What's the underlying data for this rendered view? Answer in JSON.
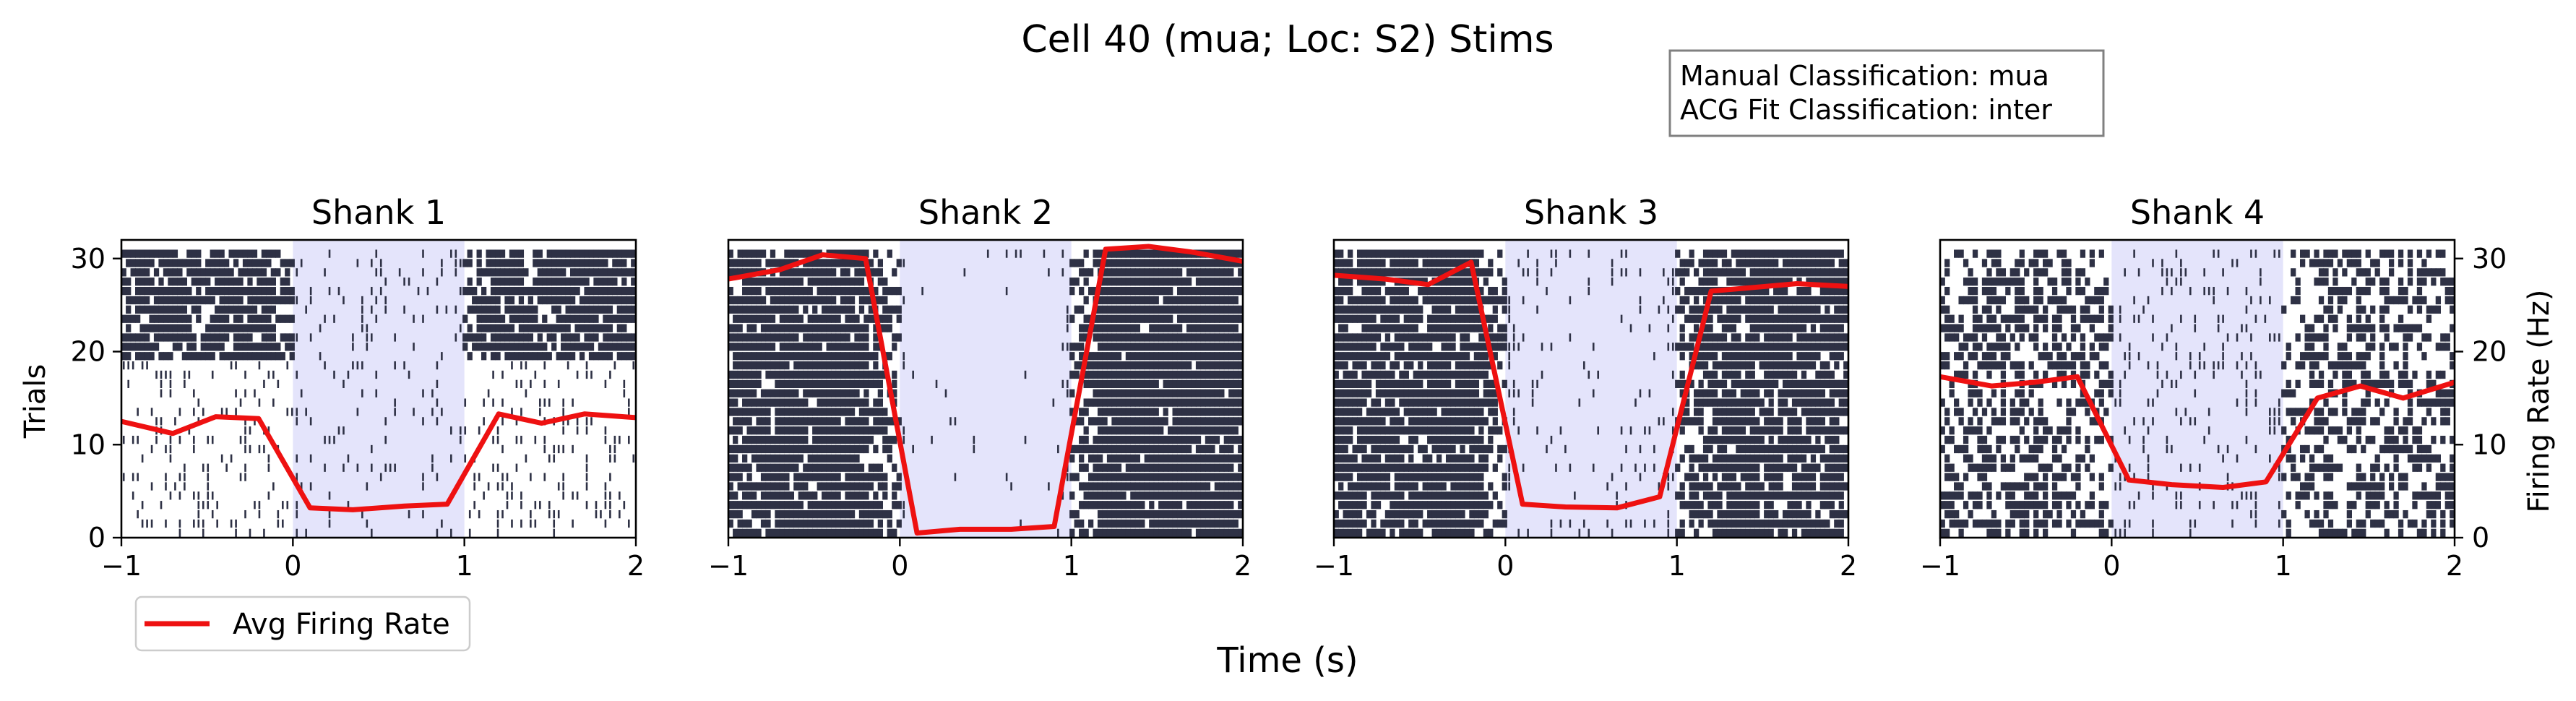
{
  "figure": {
    "title": "Cell 40 (mua; Loc: S2) Stims",
    "xlabel": "Time (s)",
    "ylabel_left": "Trials",
    "ylabel_right": "Firing Rate (Hz)"
  },
  "info_box": {
    "lines": [
      "Manual Classification: mua",
      "ACG Fit Classification: inter"
    ]
  },
  "legend": {
    "placement": "bottom-left",
    "entries": [
      {
        "label": "Avg Firing Rate",
        "color": "#ee1111"
      }
    ]
  },
  "colors": {
    "raster": "#2e3145",
    "stim_shade": "#e4e4fb",
    "rate_line": "#ee1111"
  },
  "chart_data": [
    {
      "type": "line",
      "title": "Shank 1",
      "xlim": [
        -1,
        2
      ],
      "ylim_trials": [
        0,
        32
      ],
      "ylim_rate": [
        0,
        32
      ],
      "xticks": [
        "−1",
        "0",
        "1",
        "2"
      ],
      "yticks_trials": [
        "0",
        "10",
        "20",
        "30"
      ],
      "stim_window": [
        0,
        1
      ],
      "raster_trials": 31,
      "series": [
        {
          "name": "Avg Firing Rate",
          "x": [
            -1.0,
            -0.7,
            -0.45,
            -0.2,
            0.1,
            0.35,
            0.65,
            0.9,
            1.2,
            1.45,
            1.7,
            2.0
          ],
          "y": [
            12.5,
            11.2,
            13.0,
            12.8,
            3.2,
            3.0,
            3.4,
            3.6,
            13.3,
            12.3,
            13.3,
            12.9
          ]
        }
      ]
    },
    {
      "type": "line",
      "title": "Shank 2",
      "xlim": [
        -1,
        2
      ],
      "ylim_trials": [
        0,
        32
      ],
      "ylim_rate": [
        0,
        32
      ],
      "xticks": [
        "−1",
        "0",
        "1",
        "2"
      ],
      "stim_window": [
        0,
        1
      ],
      "raster_trials": 31,
      "series": [
        {
          "name": "Avg Firing Rate",
          "x": [
            -1.0,
            -0.7,
            -0.45,
            -0.2,
            0.1,
            0.35,
            0.65,
            0.9,
            1.2,
            1.45,
            1.7,
            2.0
          ],
          "y": [
            27.8,
            28.8,
            30.4,
            30.0,
            0.5,
            0.9,
            0.9,
            1.2,
            31.0,
            31.3,
            30.7,
            29.7
          ]
        }
      ]
    },
    {
      "type": "line",
      "title": "Shank 3",
      "xlim": [
        -1,
        2
      ],
      "ylim_trials": [
        0,
        32
      ],
      "ylim_rate": [
        0,
        32
      ],
      "xticks": [
        "−1",
        "0",
        "1",
        "2"
      ],
      "stim_window": [
        0,
        1
      ],
      "raster_trials": 31,
      "series": [
        {
          "name": "Avg Firing Rate",
          "x": [
            -1.0,
            -0.7,
            -0.45,
            -0.2,
            0.1,
            0.35,
            0.65,
            0.9,
            1.2,
            1.45,
            1.7,
            2.0
          ],
          "y": [
            28.2,
            27.8,
            27.2,
            29.6,
            3.6,
            3.3,
            3.2,
            4.4,
            26.5,
            26.9,
            27.3,
            27.0
          ]
        }
      ]
    },
    {
      "type": "line",
      "title": "Shank 4",
      "xlim": [
        -1,
        2
      ],
      "ylim_trials": [
        0,
        32
      ],
      "ylim_rate": [
        0,
        32
      ],
      "xticks": [
        "−1",
        "0",
        "1",
        "2"
      ],
      "yticks_rate": [
        "0",
        "10",
        "20",
        "30"
      ],
      "stim_window": [
        0,
        1
      ],
      "raster_trials": 31,
      "series": [
        {
          "name": "Avg Firing Rate",
          "x": [
            -1.0,
            -0.7,
            -0.45,
            -0.2,
            0.1,
            0.35,
            0.65,
            0.9,
            1.2,
            1.45,
            1.7,
            2.0
          ],
          "y": [
            17.3,
            16.3,
            16.7,
            17.3,
            6.2,
            5.7,
            5.4,
            6.0,
            15.0,
            16.3,
            15.0,
            16.7
          ]
        }
      ]
    }
  ]
}
